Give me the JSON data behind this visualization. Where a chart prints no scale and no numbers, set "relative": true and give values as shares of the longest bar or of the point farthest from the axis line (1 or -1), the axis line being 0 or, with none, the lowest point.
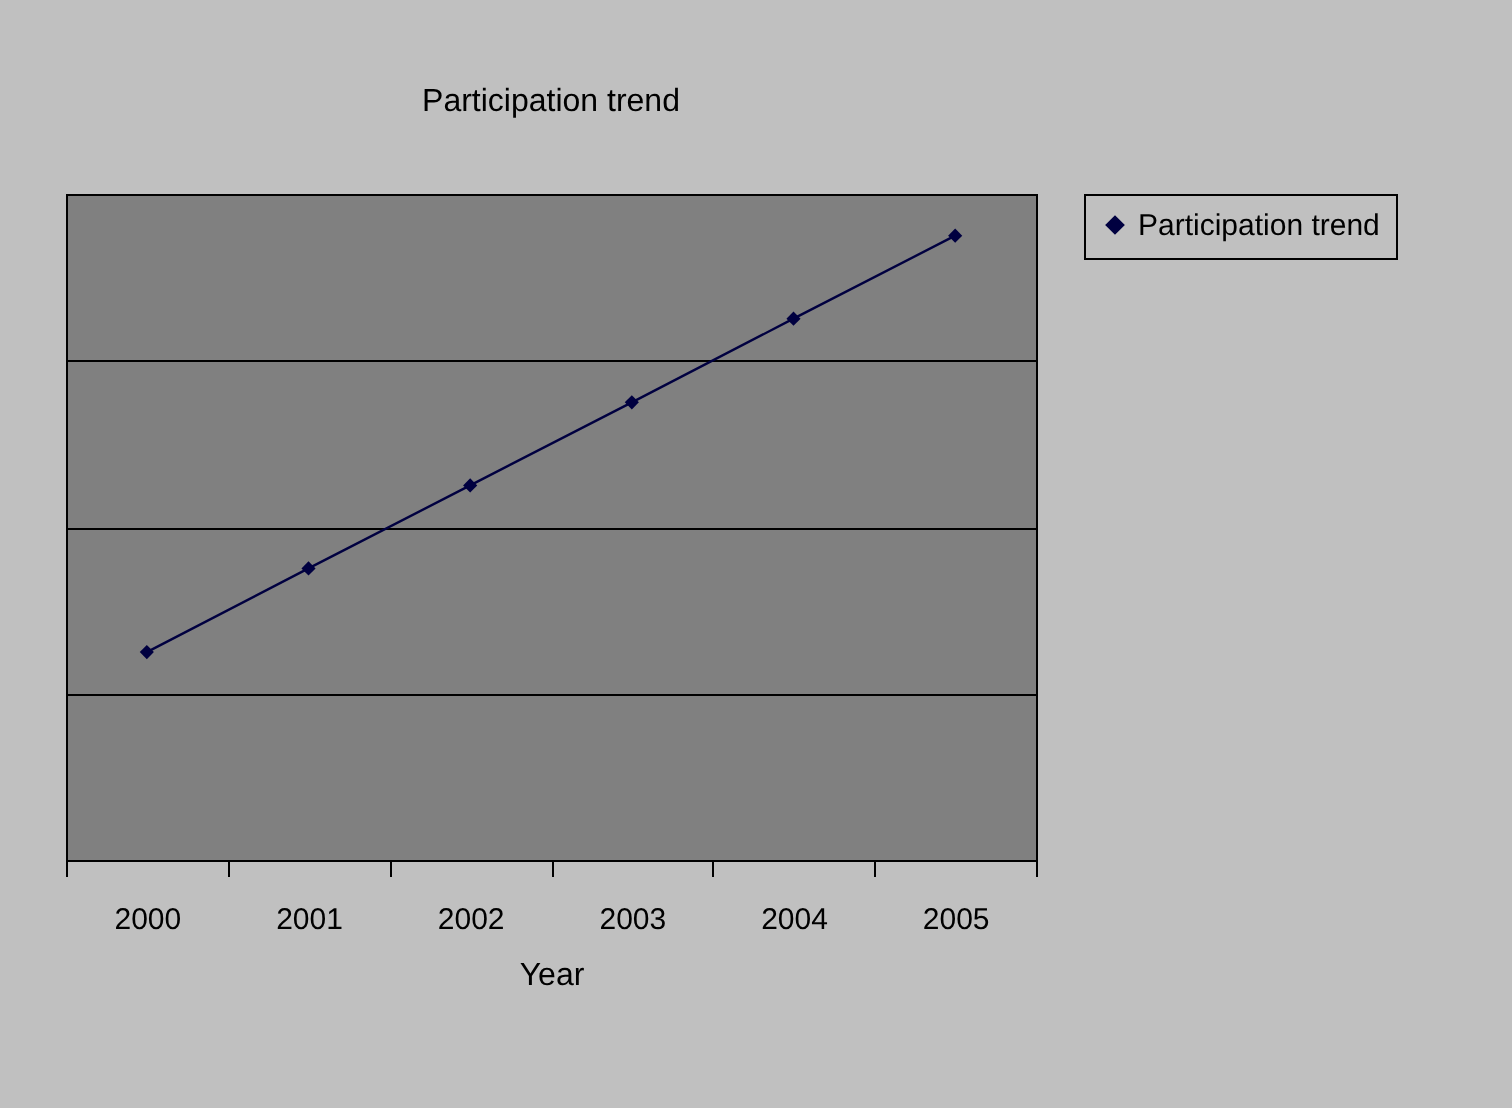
{
  "chart_data": {
    "type": "line",
    "title": "Participation trend",
    "xlabel": "Year",
    "categories": [
      "2000",
      "2001",
      "2002",
      "2003",
      "2004",
      "2005"
    ],
    "relative": true,
    "grid": "y",
    "legend": "right",
    "marker": "diamond",
    "line_style": "solid",
    "series": [
      {
        "name": "Participation trend",
        "color": "#000040",
        "values": [
          0.333,
          0.467,
          0.6,
          0.733,
          0.867,
          1
        ]
      }
    ]
  }
}
